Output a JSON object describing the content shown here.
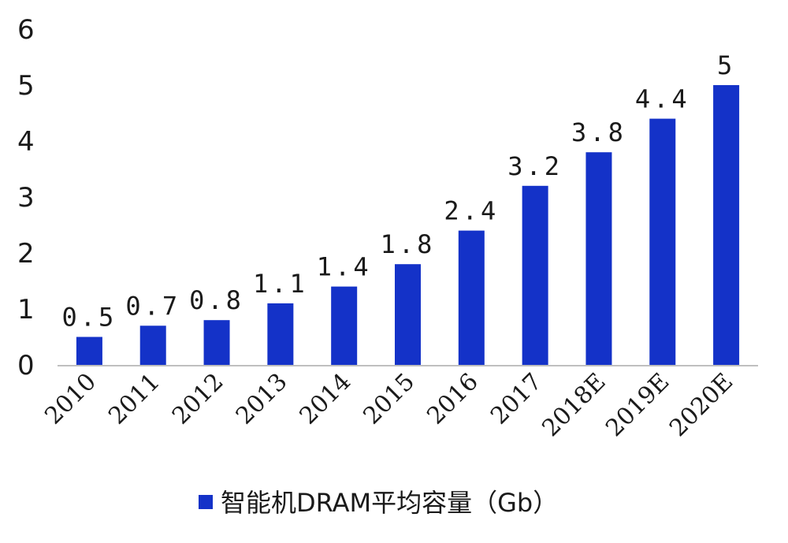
{
  "chart_data": {
    "type": "bar",
    "categories": [
      "2010",
      "2011",
      "2012",
      "2013",
      "2014",
      "2015",
      "2016",
      "2017",
      "2018E",
      "2019E",
      "2020E"
    ],
    "series": [
      {
        "name": "智能机DRAM平均容量（Gb）",
        "values": [
          0.5,
          0.7,
          0.8,
          1.1,
          1.4,
          1.8,
          2.4,
          3.2,
          3.8,
          4.4,
          5
        ],
        "data_labels": [
          "0.5",
          "0.7",
          "0.8",
          "1.1",
          "1.4",
          "1.8",
          "2.4",
          "3.2",
          "3.8",
          "4.4",
          "5"
        ]
      }
    ],
    "yticks": [
      "0",
      "1",
      "2",
      "3",
      "4",
      "5",
      "6"
    ],
    "ylim": [
      0,
      6
    ],
    "grid": false,
    "legend": "bottom",
    "colors": {
      "bar": "#1432c8",
      "axis": "#bfbfbf"
    }
  }
}
